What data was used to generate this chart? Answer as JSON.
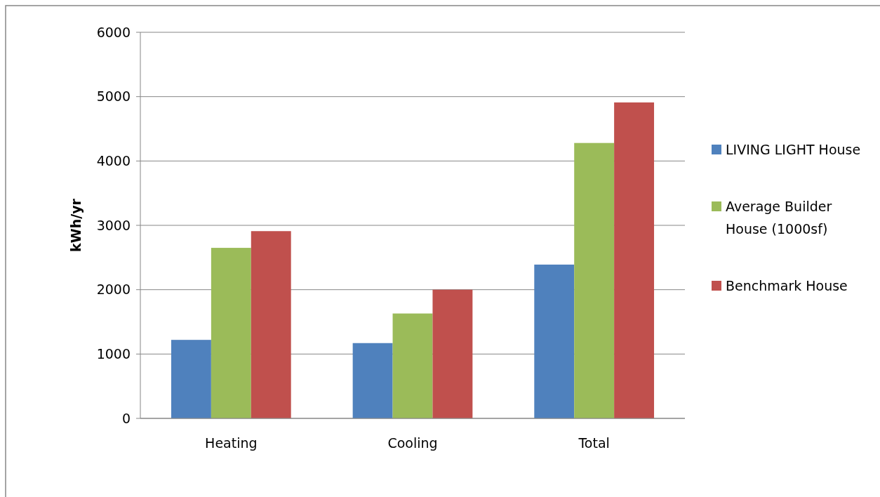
{
  "chart_data": {
    "type": "bar",
    "ylabel": "kWh/yr",
    "categories": [
      "Heating",
      "Cooling",
      "Total"
    ],
    "series": [
      {
        "name": "LIVING LIGHT House",
        "color": "#4f81bd",
        "values": [
          1220,
          1170,
          2390
        ]
      },
      {
        "name": "Average Builder House (1000sf)",
        "color": "#9bbb59",
        "values": [
          2650,
          1630,
          4280
        ]
      },
      {
        "name": "Benchmark House",
        "color": "#c0504d",
        "values": [
          2910,
          2000,
          4910
        ]
      }
    ],
    "ylim": [
      0,
      6000
    ],
    "yticks": [
      0,
      1000,
      2000,
      3000,
      4000,
      5000,
      6000
    ],
    "grid": "y",
    "legend": "right"
  }
}
